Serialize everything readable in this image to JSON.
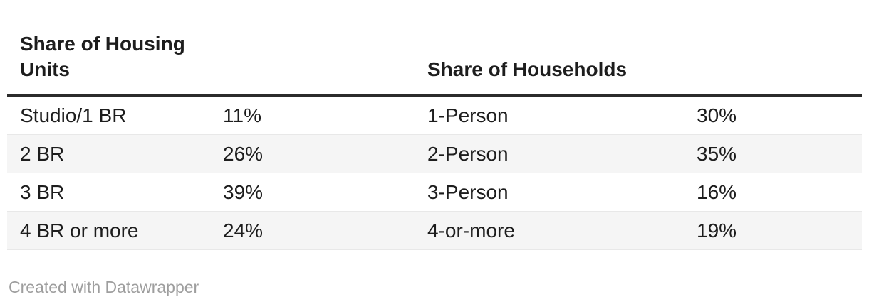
{
  "table": {
    "headers": [
      "Share of Housing Units",
      "",
      "Share of Households",
      ""
    ],
    "rows": [
      [
        "Studio/1 BR",
        "11%",
        "1-Person",
        "30%"
      ],
      [
        "2 BR",
        "26%",
        "2-Person",
        "35%"
      ],
      [
        "3 BR",
        "39%",
        "3-Person",
        "16%"
      ],
      [
        "4 BR or more",
        "24%",
        "4-or-more",
        "19%"
      ]
    ]
  },
  "footer": {
    "attribution": "Created with Datawrapper"
  },
  "colors": {
    "text": "#1d1d1d",
    "header_rule": "#2b2b2b",
    "row_alt_bg": "#f5f5f5",
    "row_border": "#e8e8e8",
    "footer_text": "#9e9e9e",
    "background": "#ffffff"
  },
  "chart_data": {
    "type": "table",
    "title": "",
    "columns": [
      "Share of Housing Units",
      "%",
      "Share of Households",
      "%"
    ],
    "rows": [
      [
        "Studio/1 BR",
        "11%",
        "1-Person",
        "30%"
      ],
      [
        "2 BR",
        "26%",
        "2-Person",
        "35%"
      ],
      [
        "3 BR",
        "39%",
        "3-Person",
        "16%"
      ],
      [
        "4 BR or more",
        "24%",
        "4-or-more",
        "19%"
      ]
    ],
    "series": [
      {
        "name": "Share of Housing Units",
        "categories": [
          "Studio/1 BR",
          "2 BR",
          "3 BR",
          "4 BR or more"
        ],
        "values": [
          11,
          26,
          39,
          24
        ],
        "unit": "%"
      },
      {
        "name": "Share of Households",
        "categories": [
          "1-Person",
          "2-Person",
          "3-Person",
          "4-or-more"
        ],
        "values": [
          30,
          35,
          16,
          19
        ],
        "unit": "%"
      }
    ],
    "layout": {
      "zebra_striping": true,
      "header_rule": true,
      "attribution": "Created with Datawrapper"
    }
  }
}
